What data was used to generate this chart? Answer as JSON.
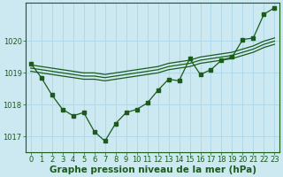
{
  "x": [
    0,
    1,
    2,
    3,
    4,
    5,
    6,
    7,
    8,
    9,
    10,
    11,
    12,
    13,
    14,
    15,
    16,
    17,
    18,
    19,
    20,
    21,
    22,
    23
  ],
  "y_main": [
    1019.3,
    1018.85,
    1018.3,
    1017.85,
    1017.65,
    1017.75,
    1017.15,
    1016.85,
    1017.4,
    1017.75,
    1017.85,
    1018.05,
    1018.45,
    1018.8,
    1018.75,
    1019.45,
    1018.95,
    1019.1,
    1019.4,
    1019.5,
    1020.05,
    1020.1,
    1020.85,
    1021.05
  ],
  "y_line1": [
    1019.25,
    1019.2,
    1019.15,
    1019.1,
    1019.05,
    1019.0,
    1019.0,
    1018.95,
    1019.0,
    1019.05,
    1019.1,
    1019.15,
    1019.2,
    1019.3,
    1019.35,
    1019.4,
    1019.5,
    1019.55,
    1019.6,
    1019.65,
    1019.75,
    1019.85,
    1020.0,
    1020.1
  ],
  "y_line2": [
    1019.15,
    1019.1,
    1019.05,
    1019.0,
    1018.95,
    1018.9,
    1018.9,
    1018.85,
    1018.9,
    1018.95,
    1019.0,
    1019.05,
    1019.1,
    1019.2,
    1019.25,
    1019.3,
    1019.4,
    1019.45,
    1019.5,
    1019.55,
    1019.65,
    1019.75,
    1019.9,
    1020.0
  ],
  "y_line3": [
    1019.05,
    1019.0,
    1018.95,
    1018.9,
    1018.85,
    1018.8,
    1018.8,
    1018.75,
    1018.8,
    1018.85,
    1018.9,
    1018.95,
    1019.0,
    1019.1,
    1019.15,
    1019.2,
    1019.3,
    1019.35,
    1019.4,
    1019.45,
    1019.55,
    1019.65,
    1019.8,
    1019.9
  ],
  "color": "#1a5c1a",
  "bg_color": "#cce8f0",
  "grid_color": "#b0d8e8",
  "xlabel": "Graphe pression niveau de la mer (hPa)",
  "ylim": [
    1016.5,
    1021.2
  ],
  "xlim": [
    -0.5,
    23.5
  ],
  "yticks": [
    1017,
    1018,
    1019,
    1020
  ],
  "xticks": [
    0,
    1,
    2,
    3,
    4,
    5,
    6,
    7,
    8,
    9,
    10,
    11,
    12,
    13,
    14,
    15,
    16,
    17,
    18,
    19,
    20,
    21,
    22,
    23
  ],
  "title_fontsize": 7.5,
  "tick_fontsize": 6.0
}
